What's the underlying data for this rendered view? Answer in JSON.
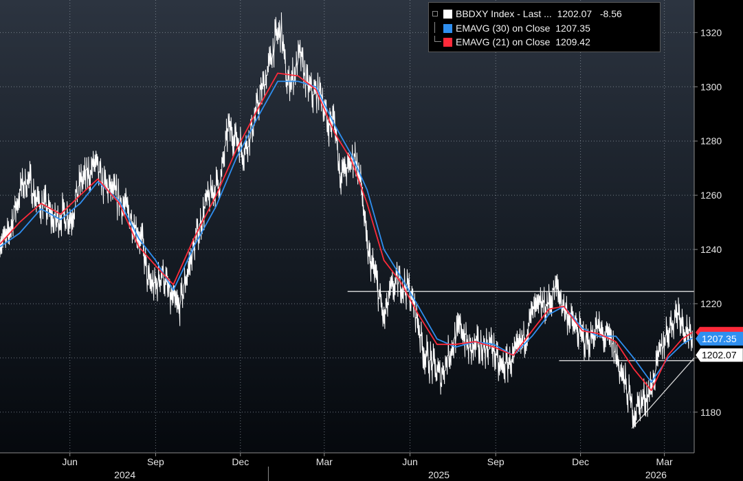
{
  "chart_data": {
    "type": "line",
    "title": "",
    "y_range": [
      1165,
      1332
    ],
    "y_ticks": [
      1180,
      1200,
      1220,
      1240,
      1260,
      1280,
      1300,
      1320
    ],
    "y_tick_labels": [
      "1180",
      "1200",
      "1220",
      "1240",
      "1260",
      "1280",
      "1300",
      "1320"
    ],
    "month_ticks": [
      "Jun",
      "Sep",
      "Dec",
      "Mar",
      "Jun",
      "Sep",
      "Dec",
      "Mar"
    ],
    "year_labels": [
      "2024",
      "2025",
      "2026"
    ],
    "x_range": [
      "2024-03-18",
      "2026-04-02"
    ],
    "month_tick_dates": [
      "2024-06-01",
      "2024-09-01",
      "2024-12-01",
      "2025-03-01",
      "2025-06-01",
      "2025-09-01",
      "2025-12-01",
      "2026-03-01"
    ],
    "year_label_dates": [
      "2024-07-30",
      "2025-07-02",
      "2026-02-20"
    ],
    "year_separator_dates": [
      "2024-12-31"
    ],
    "grid": true,
    "legend_position": "top-right",
    "legend": [
      {
        "series": "BBDXY Index - Last ...",
        "value": "1202.07",
        "change": "-8.56",
        "color": "#ffffff"
      },
      {
        "series": "EMAVG (30)  on Close",
        "value": "1207.35",
        "color": "#2f8ff0"
      },
      {
        "series": "EMAVG (21)  on Close",
        "value": "1209.42",
        "color": "#ff2a3a"
      }
    ],
    "series": [
      {
        "name": "BBDXY Index - Last ...",
        "color": "#ffffff",
        "points": [
          [
            "2024-03-18",
            1244
          ],
          [
            "2024-03-25",
            1243
          ],
          [
            "2024-04-01",
            1252
          ],
          [
            "2024-04-10",
            1263
          ],
          [
            "2024-04-18",
            1266
          ],
          [
            "2024-04-26",
            1258
          ],
          [
            "2024-05-06",
            1256
          ],
          [
            "2024-05-15",
            1250
          ],
          [
            "2024-05-24",
            1253
          ],
          [
            "2024-06-03",
            1252
          ],
          [
            "2024-06-12",
            1265
          ],
          [
            "2024-06-22",
            1268
          ],
          [
            "2024-06-28",
            1272
          ],
          [
            "2024-07-06",
            1264
          ],
          [
            "2024-07-15",
            1262
          ],
          [
            "2024-07-24",
            1258
          ],
          [
            "2024-08-02",
            1254
          ],
          [
            "2024-08-10",
            1249
          ],
          [
            "2024-08-18",
            1242
          ],
          [
            "2024-08-24",
            1228
          ],
          [
            "2024-09-01",
            1226
          ],
          [
            "2024-09-08",
            1232
          ],
          [
            "2024-09-17",
            1222
          ],
          [
            "2024-09-26",
            1218
          ],
          [
            "2024-10-04",
            1230
          ],
          [
            "2024-10-14",
            1243
          ],
          [
            "2024-10-24",
            1256
          ],
          [
            "2024-11-02",
            1262
          ],
          [
            "2024-11-10",
            1266
          ],
          [
            "2024-11-18",
            1285
          ],
          [
            "2024-11-27",
            1281
          ],
          [
            "2024-12-05",
            1276
          ],
          [
            "2024-12-14",
            1285
          ],
          [
            "2024-12-22",
            1296
          ],
          [
            "2025-01-01",
            1308
          ],
          [
            "2025-01-08",
            1318
          ],
          [
            "2025-01-14",
            1321
          ],
          [
            "2025-01-20",
            1301
          ],
          [
            "2025-01-27",
            1304
          ],
          [
            "2025-02-03",
            1312
          ],
          [
            "2025-02-10",
            1301
          ],
          [
            "2025-02-17",
            1297
          ],
          [
            "2025-02-26",
            1298
          ],
          [
            "2025-03-04",
            1286
          ],
          [
            "2025-03-12",
            1288
          ],
          [
            "2025-03-18",
            1268
          ],
          [
            "2025-03-27",
            1270
          ],
          [
            "2025-04-03",
            1275
          ],
          [
            "2025-04-10",
            1263
          ],
          [
            "2025-04-16",
            1240
          ],
          [
            "2025-04-25",
            1230
          ],
          [
            "2025-05-04",
            1214
          ],
          [
            "2025-05-12",
            1225
          ],
          [
            "2025-05-20",
            1228
          ],
          [
            "2025-05-30",
            1226
          ],
          [
            "2025-06-08",
            1216
          ],
          [
            "2025-06-16",
            1202
          ],
          [
            "2025-06-26",
            1197
          ],
          [
            "2025-07-04",
            1193
          ],
          [
            "2025-07-11",
            1200
          ],
          [
            "2025-07-18",
            1206
          ],
          [
            "2025-07-26",
            1212
          ],
          [
            "2025-08-03",
            1203
          ],
          [
            "2025-08-10",
            1204
          ],
          [
            "2025-08-20",
            1204
          ],
          [
            "2025-08-28",
            1205
          ],
          [
            "2025-09-05",
            1196
          ],
          [
            "2025-09-14",
            1198
          ],
          [
            "2025-09-23",
            1201
          ],
          [
            "2025-10-02",
            1208
          ],
          [
            "2025-10-11",
            1217
          ],
          [
            "2025-10-20",
            1219
          ],
          [
            "2025-10-28",
            1220
          ],
          [
            "2025-11-05",
            1226
          ],
          [
            "2025-11-13",
            1219
          ],
          [
            "2025-11-22",
            1213
          ],
          [
            "2025-12-01",
            1208
          ],
          [
            "2025-12-10",
            1206
          ],
          [
            "2025-12-18",
            1211
          ],
          [
            "2025-12-26",
            1208
          ],
          [
            "2026-01-03",
            1206
          ],
          [
            "2026-01-10",
            1199
          ],
          [
            "2026-01-18",
            1190
          ],
          [
            "2026-01-27",
            1180
          ],
          [
            "2026-02-05",
            1184
          ],
          [
            "2026-02-14",
            1188
          ],
          [
            "2026-02-23",
            1200
          ],
          [
            "2026-03-02",
            1208
          ],
          [
            "2026-03-09",
            1213
          ],
          [
            "2026-03-16",
            1218
          ],
          [
            "2026-03-22",
            1212
          ],
          [
            "2026-03-27",
            1210
          ],
          [
            "2026-03-31",
            1202.07
          ]
        ]
      },
      {
        "name": "EMAVG (30)  on Close",
        "color": "#2f8ff0",
        "points": [
          [
            "2024-03-18",
            1241
          ],
          [
            "2024-04-08",
            1246
          ],
          [
            "2024-05-01",
            1255
          ],
          [
            "2024-05-22",
            1251
          ],
          [
            "2024-06-12",
            1257
          ],
          [
            "2024-07-01",
            1265
          ],
          [
            "2024-07-24",
            1258
          ],
          [
            "2024-08-14",
            1244
          ],
          [
            "2024-09-01",
            1236
          ],
          [
            "2024-09-20",
            1225
          ],
          [
            "2024-10-12",
            1241
          ],
          [
            "2024-11-05",
            1256
          ],
          [
            "2024-11-27",
            1274
          ],
          [
            "2024-12-20",
            1289
          ],
          [
            "2025-01-10",
            1302
          ],
          [
            "2025-02-01",
            1302
          ],
          [
            "2025-02-20",
            1300
          ],
          [
            "2025-03-12",
            1286
          ],
          [
            "2025-03-30",
            1275
          ],
          [
            "2025-04-16",
            1262
          ],
          [
            "2025-05-04",
            1240
          ],
          [
            "2025-05-22",
            1230
          ],
          [
            "2025-06-10",
            1219
          ],
          [
            "2025-06-30",
            1207
          ],
          [
            "2025-07-20",
            1204
          ],
          [
            "2025-08-10",
            1206
          ],
          [
            "2025-08-30",
            1205
          ],
          [
            "2025-09-20",
            1201
          ],
          [
            "2025-10-10",
            1208
          ],
          [
            "2025-10-28",
            1216
          ],
          [
            "2025-11-13",
            1219
          ],
          [
            "2025-12-03",
            1211
          ],
          [
            "2025-12-20",
            1208
          ],
          [
            "2026-01-08",
            1208
          ],
          [
            "2026-01-27",
            1200
          ],
          [
            "2026-02-15",
            1191
          ],
          [
            "2026-03-05",
            1200
          ],
          [
            "2026-03-20",
            1205
          ],
          [
            "2026-03-31",
            1207.35
          ]
        ]
      },
      {
        "name": "EMAVG (21)  on Close",
        "color": "#ff2a3a",
        "points": [
          [
            "2024-03-18",
            1242
          ],
          [
            "2024-04-08",
            1250
          ],
          [
            "2024-05-01",
            1257
          ],
          [
            "2024-05-22",
            1253
          ],
          [
            "2024-06-12",
            1260
          ],
          [
            "2024-07-01",
            1266
          ],
          [
            "2024-07-24",
            1257
          ],
          [
            "2024-08-14",
            1241
          ],
          [
            "2024-09-01",
            1234
          ],
          [
            "2024-09-20",
            1227
          ],
          [
            "2024-10-12",
            1244
          ],
          [
            "2024-11-05",
            1260
          ],
          [
            "2024-11-27",
            1277
          ],
          [
            "2024-12-20",
            1292
          ],
          [
            "2025-01-10",
            1305
          ],
          [
            "2025-02-01",
            1304
          ],
          [
            "2025-02-20",
            1299
          ],
          [
            "2025-03-12",
            1283
          ],
          [
            "2025-03-30",
            1273
          ],
          [
            "2025-04-16",
            1257
          ],
          [
            "2025-05-04",
            1236
          ],
          [
            "2025-05-22",
            1228
          ],
          [
            "2025-06-10",
            1216
          ],
          [
            "2025-06-30",
            1205
          ],
          [
            "2025-07-20",
            1205
          ],
          [
            "2025-08-10",
            1206
          ],
          [
            "2025-08-30",
            1204
          ],
          [
            "2025-09-20",
            1201
          ],
          [
            "2025-10-10",
            1210
          ],
          [
            "2025-10-28",
            1218
          ],
          [
            "2025-11-13",
            1219
          ],
          [
            "2025-12-03",
            1210
          ],
          [
            "2025-12-20",
            1209
          ],
          [
            "2026-01-08",
            1206
          ],
          [
            "2026-01-27",
            1196
          ],
          [
            "2026-02-15",
            1188
          ],
          [
            "2026-03-05",
            1201
          ],
          [
            "2026-03-20",
            1207
          ],
          [
            "2026-03-31",
            1209.42
          ]
        ]
      }
    ],
    "annotations": [
      {
        "kind": "horizontal-line",
        "label": "resistance-line",
        "y": 1224.5,
        "x_start": "2025-03-26",
        "x_end": "2026-04-02"
      },
      {
        "kind": "horizontal-line",
        "label": "support-line",
        "y": 1199,
        "x_start": "2025-11-08",
        "x_end": "2026-04-02"
      },
      {
        "kind": "trend-line",
        "label": "rising-trend-line",
        "from": [
          "2026-01-25",
          1174
        ],
        "to": [
          "2026-04-02",
          1200
        ]
      }
    ],
    "price_tags": [
      {
        "text": "1207.35",
        "value": 1207.35,
        "bg": "#2f8ff0",
        "fg": "#ffffff"
      },
      {
        "text": "1202.07",
        "value": 1202.07,
        "bg": "#ffffff",
        "fg": "#000000"
      }
    ],
    "hidden_tag": {
      "value": 1209.42,
      "bg": "#ff2a3a"
    }
  }
}
